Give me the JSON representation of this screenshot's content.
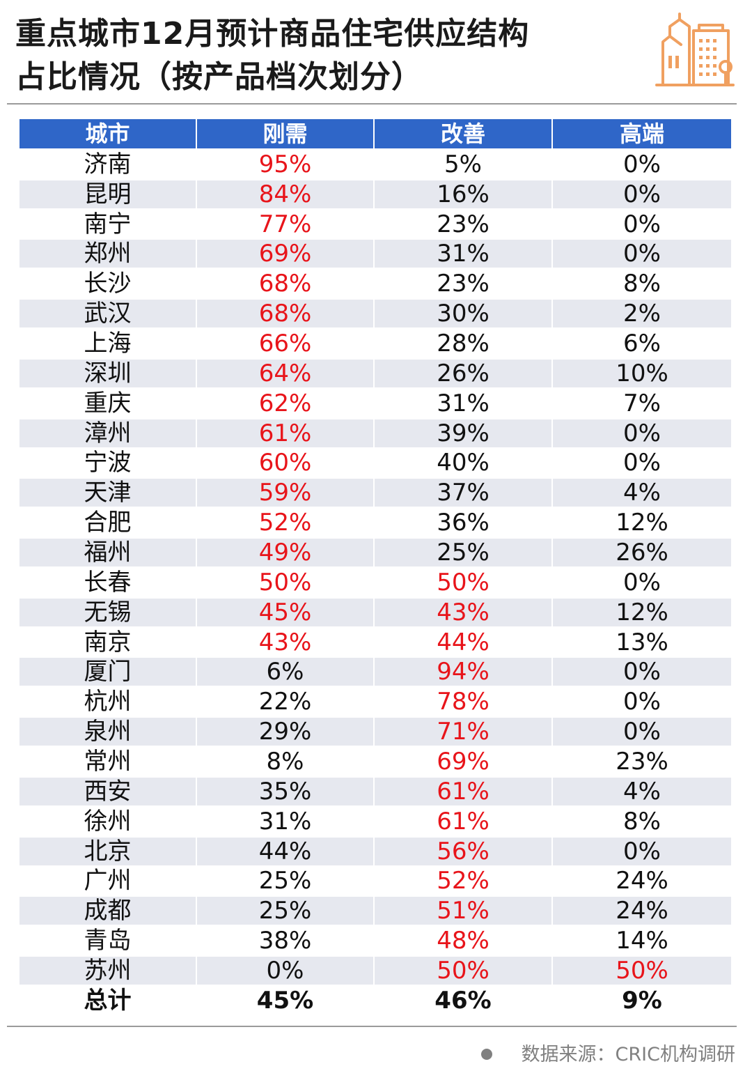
{
  "title": {
    "line1": "重点城市12月预计商品住宅供应结构",
    "line2": "占比情况（按产品档次划分）"
  },
  "icon": "building-icon",
  "colors": {
    "header_bg": "#2f66c8",
    "highlight": "#e8141a",
    "icon": "#f0a060"
  },
  "chart_data": {
    "type": "table",
    "columns": [
      "城市",
      "刚需",
      "改善",
      "高端"
    ],
    "rows": [
      {
        "city": "济南",
        "values": [
          "95%",
          "5%",
          "0%"
        ],
        "highlight": [
          0
        ]
      },
      {
        "city": "昆明",
        "values": [
          "84%",
          "16%",
          "0%"
        ],
        "highlight": [
          0
        ]
      },
      {
        "city": "南宁",
        "values": [
          "77%",
          "23%",
          "0%"
        ],
        "highlight": [
          0
        ]
      },
      {
        "city": "郑州",
        "values": [
          "69%",
          "31%",
          "0%"
        ],
        "highlight": [
          0
        ]
      },
      {
        "city": "长沙",
        "values": [
          "68%",
          "23%",
          "8%"
        ],
        "highlight": [
          0
        ]
      },
      {
        "city": "武汉",
        "values": [
          "68%",
          "30%",
          "2%"
        ],
        "highlight": [
          0
        ]
      },
      {
        "city": "上海",
        "values": [
          "66%",
          "28%",
          "6%"
        ],
        "highlight": [
          0
        ]
      },
      {
        "city": "深圳",
        "values": [
          "64%",
          "26%",
          "10%"
        ],
        "highlight": [
          0
        ]
      },
      {
        "city": "重庆",
        "values": [
          "62%",
          "31%",
          "7%"
        ],
        "highlight": [
          0
        ]
      },
      {
        "city": "漳州",
        "values": [
          "61%",
          "39%",
          "0%"
        ],
        "highlight": [
          0
        ]
      },
      {
        "city": "宁波",
        "values": [
          "60%",
          "40%",
          "0%"
        ],
        "highlight": [
          0
        ]
      },
      {
        "city": "天津",
        "values": [
          "59%",
          "37%",
          "4%"
        ],
        "highlight": [
          0
        ]
      },
      {
        "city": "合肥",
        "values": [
          "52%",
          "36%",
          "12%"
        ],
        "highlight": [
          0
        ]
      },
      {
        "city": "福州",
        "values": [
          "49%",
          "25%",
          "26%"
        ],
        "highlight": [
          0
        ]
      },
      {
        "city": "长春",
        "values": [
          "50%",
          "50%",
          "0%"
        ],
        "highlight": [
          0,
          1
        ]
      },
      {
        "city": "无锡",
        "values": [
          "45%",
          "43%",
          "12%"
        ],
        "highlight": [
          0,
          1
        ]
      },
      {
        "city": "南京",
        "values": [
          "43%",
          "44%",
          "13%"
        ],
        "highlight": [
          0,
          1
        ]
      },
      {
        "city": "厦门",
        "values": [
          "6%",
          "94%",
          "0%"
        ],
        "highlight": [
          1
        ]
      },
      {
        "city": "杭州",
        "values": [
          "22%",
          "78%",
          "0%"
        ],
        "highlight": [
          1
        ]
      },
      {
        "city": "泉州",
        "values": [
          "29%",
          "71%",
          "0%"
        ],
        "highlight": [
          1
        ]
      },
      {
        "city": "常州",
        "values": [
          "8%",
          "69%",
          "23%"
        ],
        "highlight": [
          1
        ]
      },
      {
        "city": "西安",
        "values": [
          "35%",
          "61%",
          "4%"
        ],
        "highlight": [
          1
        ]
      },
      {
        "city": "徐州",
        "values": [
          "31%",
          "61%",
          "8%"
        ],
        "highlight": [
          1
        ]
      },
      {
        "city": "北京",
        "values": [
          "44%",
          "56%",
          "0%"
        ],
        "highlight": [
          1
        ]
      },
      {
        "city": "广州",
        "values": [
          "25%",
          "52%",
          "24%"
        ],
        "highlight": [
          1
        ]
      },
      {
        "city": "成都",
        "values": [
          "25%",
          "51%",
          "24%"
        ],
        "highlight": [
          1
        ]
      },
      {
        "city": "青岛",
        "values": [
          "38%",
          "48%",
          "14%"
        ],
        "highlight": [
          1
        ]
      },
      {
        "city": "苏州",
        "values": [
          "0%",
          "50%",
          "50%"
        ],
        "highlight": [
          1,
          2
        ]
      }
    ],
    "total": {
      "city": "总计",
      "values": [
        "45%",
        "46%",
        "9%"
      ]
    }
  },
  "source": "数据来源：CRIC机构调研"
}
